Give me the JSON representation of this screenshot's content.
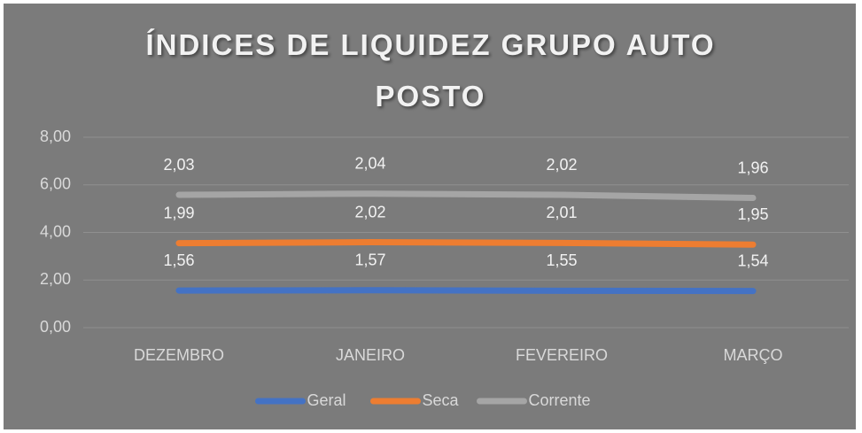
{
  "chart_data": {
    "type": "stacked_line",
    "title": "ÍNDICES DE LIQUIDEZ GRUPO AUTO POSTO",
    "categories": [
      "DEZEMBRO",
      "JANEIRO",
      "FEVEREIRO",
      "MARÇO"
    ],
    "series": [
      {
        "name": "Geral",
        "color": "#4472c4",
        "values": [
          1.56,
          1.57,
          1.55,
          1.54
        ],
        "value_labels": [
          "1,56",
          "1,57",
          "1,55",
          "1,54"
        ]
      },
      {
        "name": "Seca",
        "color": "#ed7d31",
        "values": [
          1.99,
          2.02,
          2.01,
          1.95
        ],
        "value_labels": [
          "1,99",
          "2,02",
          "2,01",
          "1,95"
        ]
      },
      {
        "name": "Corrente",
        "color": "#a5a5a5",
        "values": [
          2.03,
          2.04,
          2.02,
          1.96
        ],
        "value_labels": [
          "2,03",
          "2,04",
          "2,02",
          "1,96"
        ]
      }
    ],
    "ylim": [
      0,
      8
    ],
    "yticks": [
      {
        "value": 0,
        "label": "0,00"
      },
      {
        "value": 2,
        "label": "2,00"
      },
      {
        "value": 4,
        "label": "4,00"
      },
      {
        "value": 6,
        "label": "6,00"
      },
      {
        "value": 8,
        "label": "8,00"
      }
    ],
    "grid": true,
    "legend": "bottom"
  }
}
